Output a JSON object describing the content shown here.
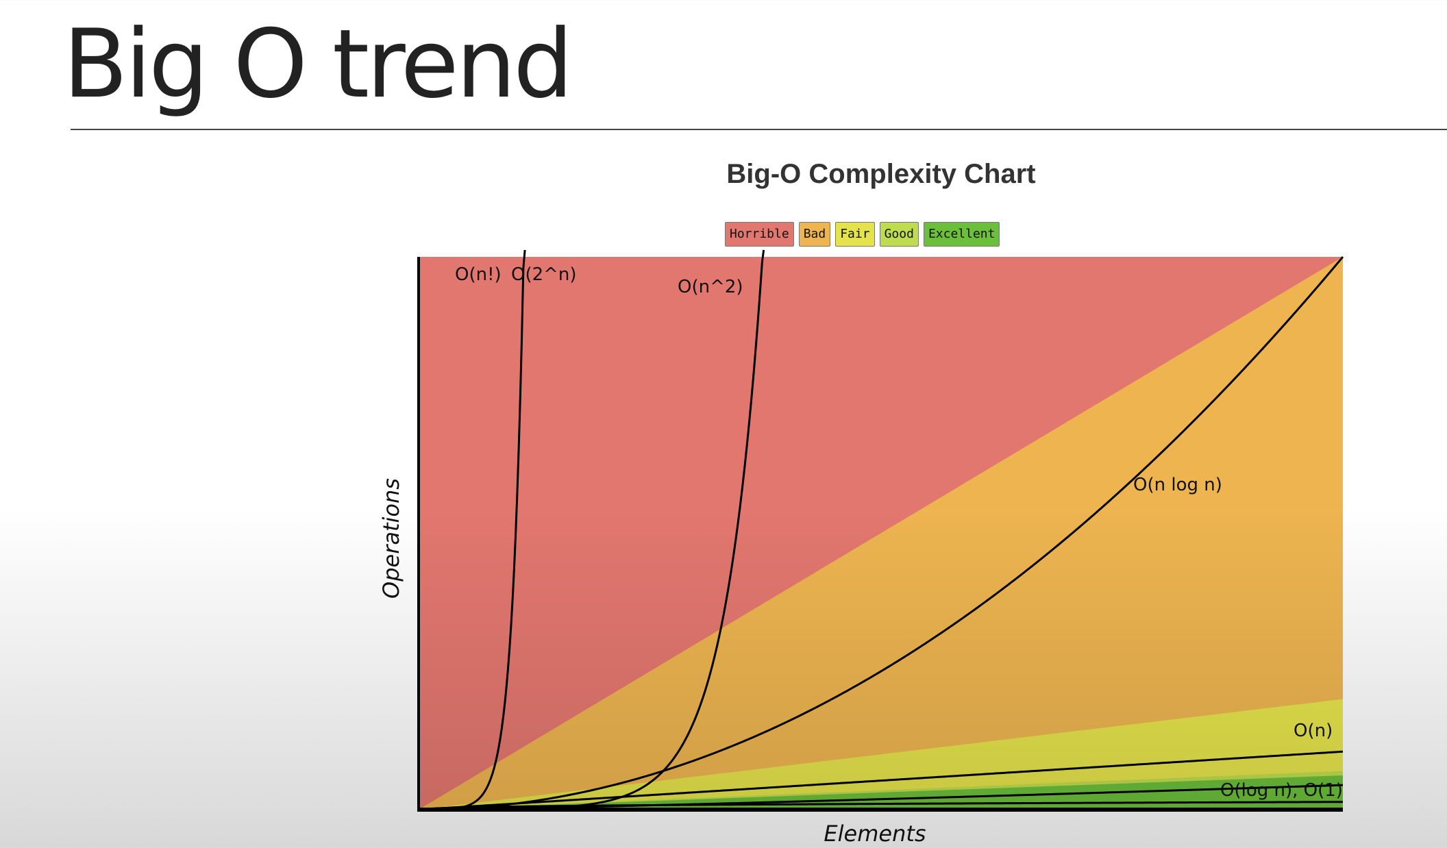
{
  "slide": {
    "title": "Big O trend"
  },
  "chart_data": {
    "type": "area",
    "title": "Big-O Complexity Chart",
    "xlabel": "Elements",
    "ylabel": "Operations",
    "grid": false,
    "legend_placement": "top-center",
    "legend": [
      {
        "name": "Horrible",
        "color": "#e2776f"
      },
      {
        "name": "Bad",
        "color": "#edb450"
      },
      {
        "name": "Fair",
        "color": "#e5e34b"
      },
      {
        "name": "Good",
        "color": "#bfdc4e"
      },
      {
        "name": "Excellent",
        "color": "#6bbf3a"
      }
    ],
    "curves": [
      {
        "name": "O(n!)",
        "label": "O(n!)"
      },
      {
        "name": "O(2^n)",
        "label": "O(2^n)"
      },
      {
        "name": "O(n^2)",
        "label": "O(n^2)"
      },
      {
        "name": "O(n log n)",
        "label": "O(n log n)"
      },
      {
        "name": "O(n)",
        "label": "O(n)"
      },
      {
        "name": "O(log n)",
        "label": "O(log n), O(1)"
      }
    ]
  }
}
